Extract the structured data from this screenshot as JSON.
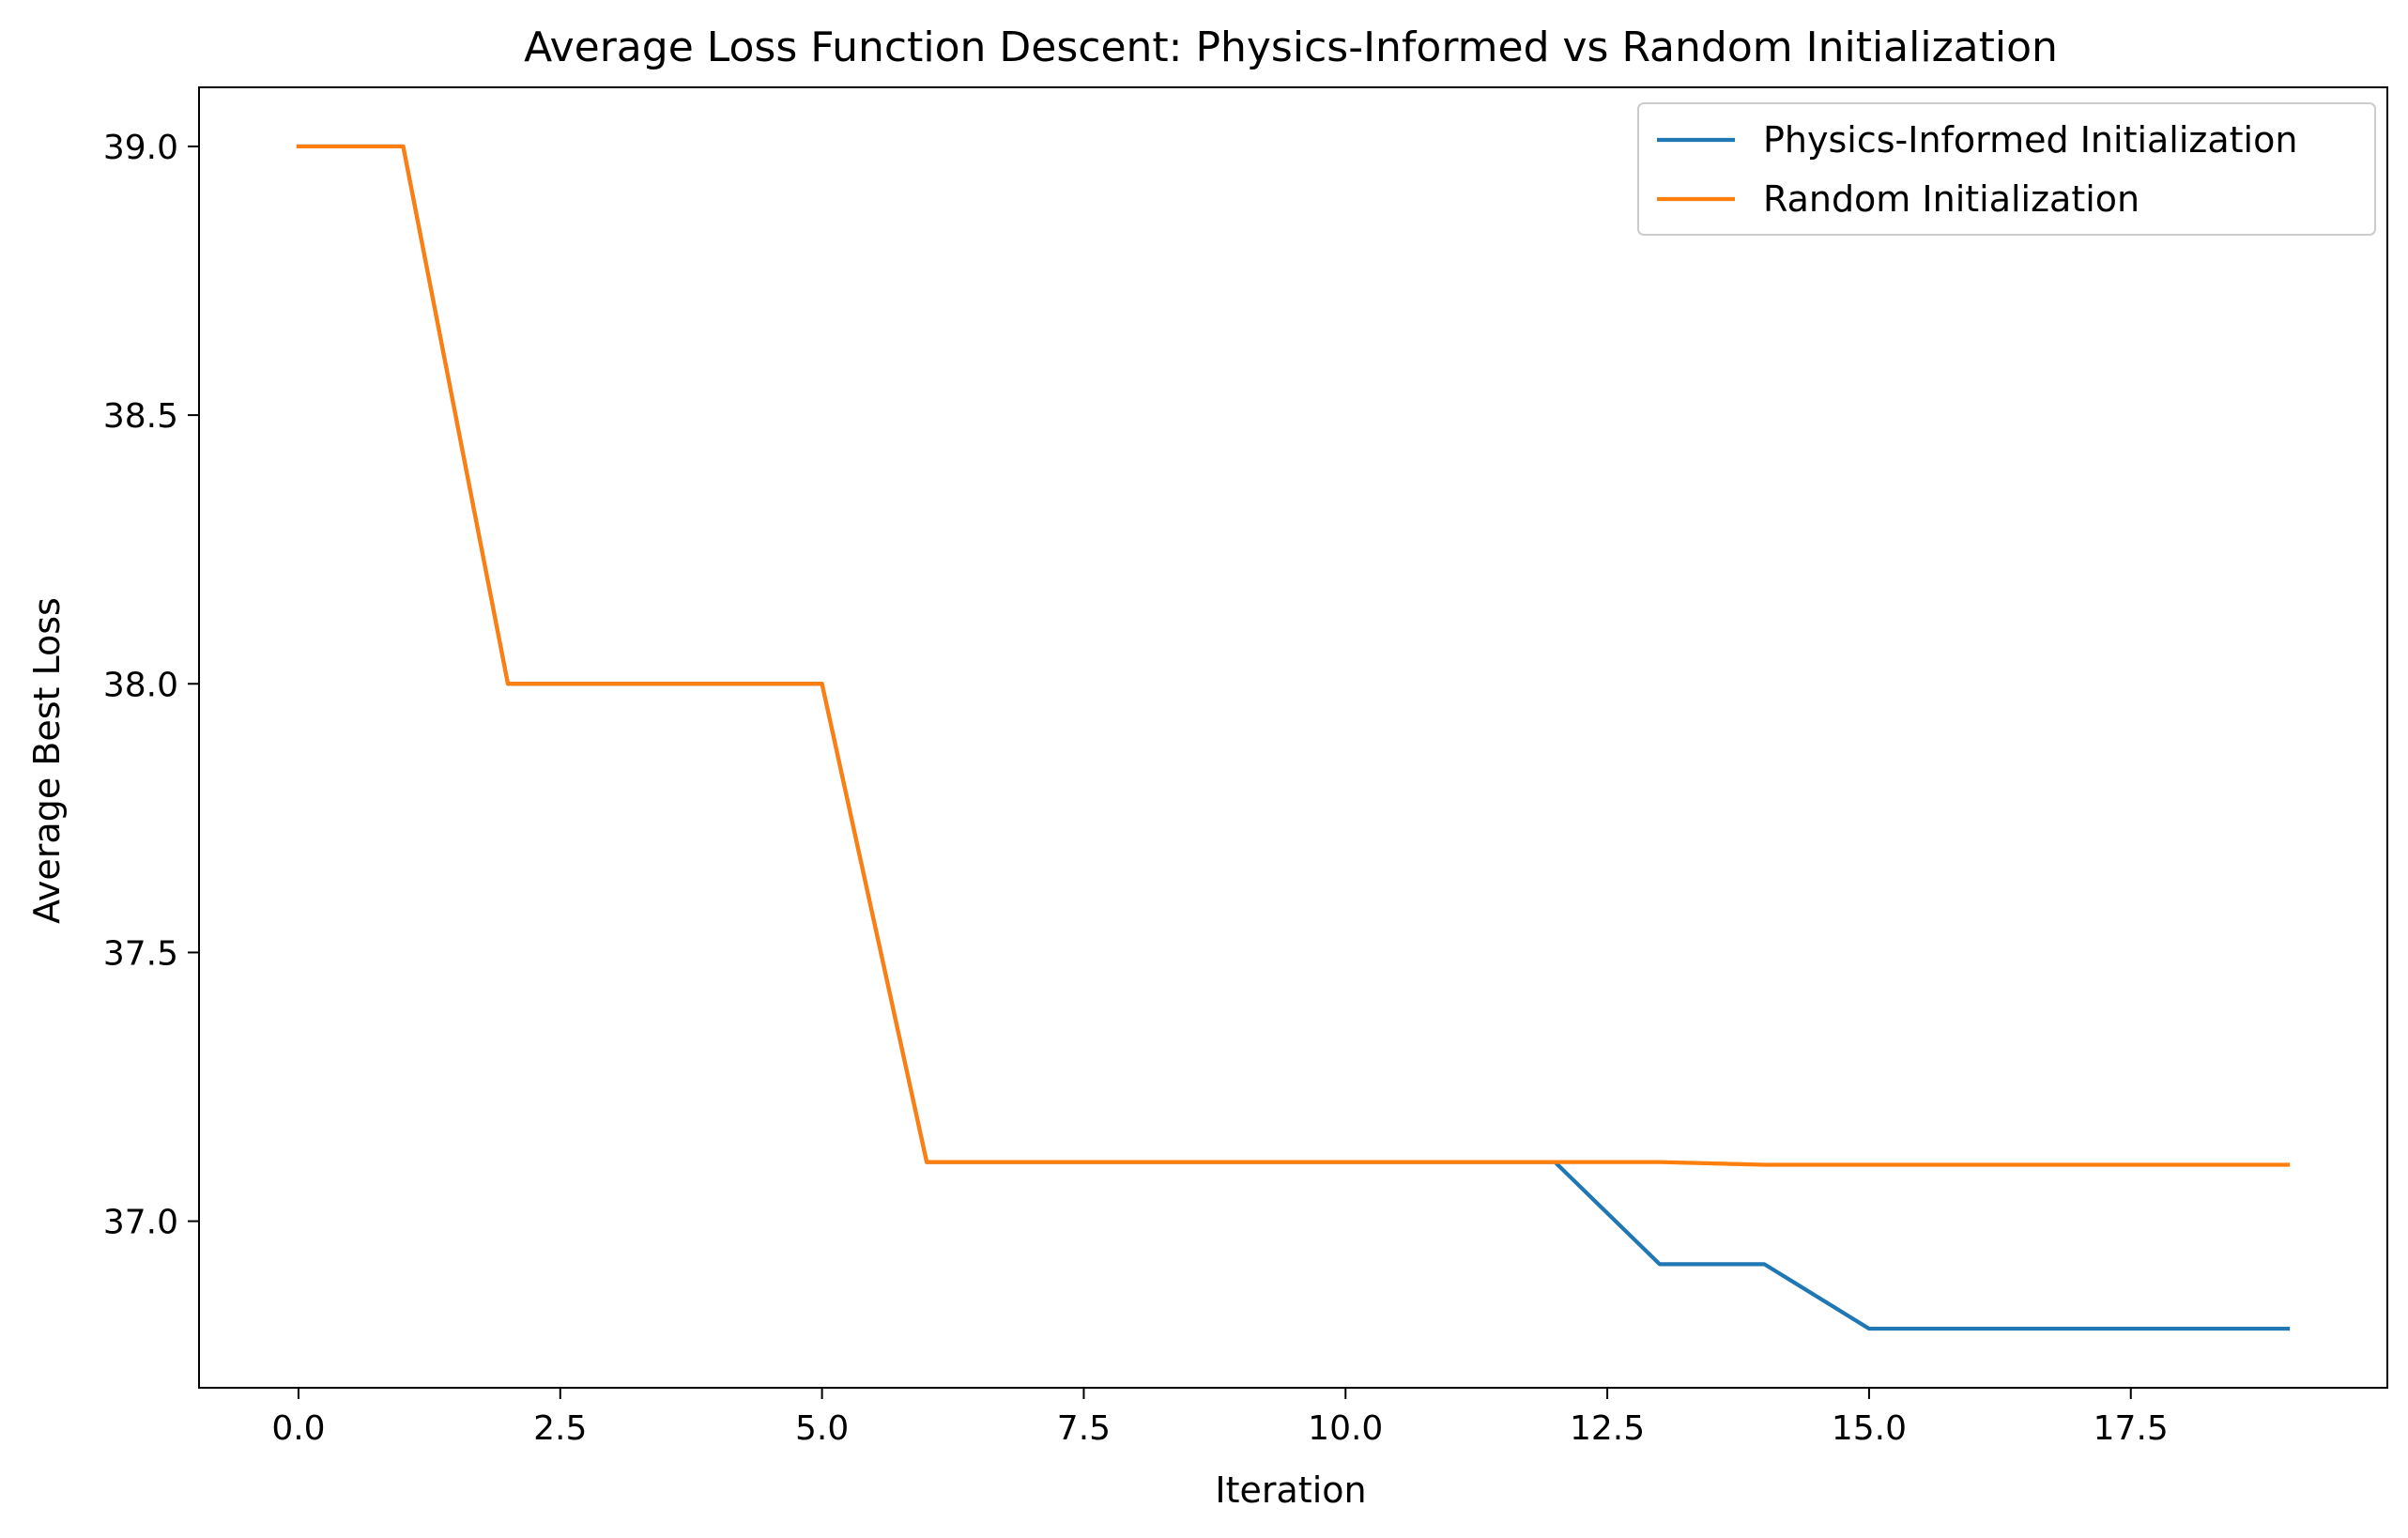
{
  "chart_data": {
    "type": "line",
    "title": "Average Loss Function Descent: Physics-Informed vs Random Initialization",
    "xlabel": "Iteration",
    "ylabel": "Average Best Loss",
    "x": [
      0,
      1,
      2,
      3,
      4,
      5,
      6,
      7,
      8,
      9,
      10,
      11,
      12,
      13,
      14,
      15,
      16,
      17,
      18,
      19
    ],
    "series": [
      {
        "name": "Physics-Informed Initialization",
        "color": "#1f77b4",
        "values": [
          39.0,
          39.0,
          38.0,
          38.0,
          38.0,
          38.0,
          37.11,
          37.11,
          37.11,
          37.11,
          37.11,
          37.11,
          37.11,
          36.92,
          36.92,
          36.8,
          36.8,
          36.8,
          36.8,
          36.8
        ]
      },
      {
        "name": "Random Initialization",
        "color": "#ff7f0e",
        "values": [
          39.0,
          39.0,
          38.0,
          38.0,
          38.0,
          38.0,
          37.11,
          37.11,
          37.11,
          37.11,
          37.11,
          37.11,
          37.11,
          37.11,
          37.105,
          37.105,
          37.105,
          37.105,
          37.105,
          37.105
        ]
      }
    ],
    "xlim": [
      -0.95,
      19.95
    ],
    "ylim": [
      36.69,
      39.11
    ],
    "xticks": [
      0.0,
      2.5,
      5.0,
      7.5,
      10.0,
      12.5,
      15.0,
      17.5
    ],
    "xtick_labels": [
      "0.0",
      "2.5",
      "5.0",
      "7.5",
      "10.0",
      "12.5",
      "15.0",
      "17.5"
    ],
    "yticks": [
      37.0,
      37.5,
      38.0,
      38.5,
      39.0
    ],
    "ytick_labels": [
      "37.0",
      "37.5",
      "38.0",
      "38.5",
      "39.0"
    ],
    "grid": false,
    "legend_position": "top-right"
  }
}
